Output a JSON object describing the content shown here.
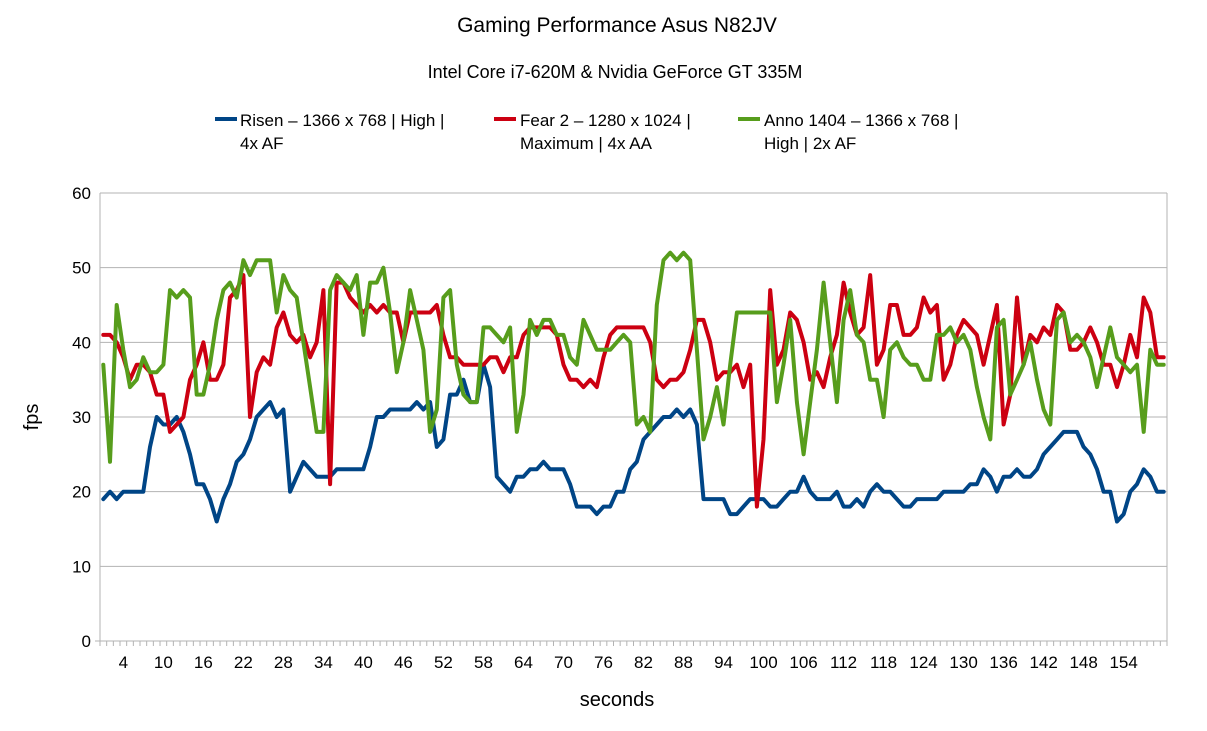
{
  "chart_data": {
    "type": "line",
    "title": "Gaming Performance Asus N82JV",
    "subtitle": "Intel Core i7-620M & Nvidia GeForce GT 335M",
    "xlabel": "seconds",
    "ylabel": "fps",
    "ylim": [
      0,
      60
    ],
    "yticks": [
      0,
      10,
      20,
      30,
      40,
      50,
      60
    ],
    "ytick_labels": [
      "0",
      "10",
      "20",
      "30",
      "40",
      "50",
      "60"
    ],
    "x_count": 160,
    "xtick_labels": [
      "4",
      "10",
      "16",
      "22",
      "28",
      "34",
      "40",
      "46",
      "52",
      "58",
      "64",
      "70",
      "76",
      "82",
      "88",
      "94",
      "100",
      "106",
      "112",
      "118",
      "124",
      "130",
      "136",
      "142",
      "148",
      "154"
    ],
    "xtick_values": [
      4,
      10,
      16,
      22,
      28,
      34,
      40,
      46,
      52,
      58,
      64,
      70,
      76,
      82,
      88,
      94,
      100,
      106,
      112,
      118,
      124,
      130,
      136,
      142,
      148,
      154
    ],
    "grid": true,
    "legend_position": "top",
    "series": [
      {
        "name": "Risen – 1366 x 768 | High | 4x AF",
        "legend_lines": [
          "Risen – 1366 x 768 | High |",
          "4x AF"
        ],
        "color": "#004586",
        "values": [
          19,
          20,
          19,
          20,
          20,
          20,
          20,
          26,
          30,
          29,
          29,
          30,
          28,
          25,
          21,
          21,
          19,
          16,
          19,
          21,
          24,
          25,
          27,
          30,
          31,
          32,
          30,
          31,
          20,
          22,
          24,
          23,
          22,
          22,
          22,
          23,
          23,
          23,
          23,
          23,
          26,
          30,
          30,
          31,
          31,
          31,
          31,
          32,
          31,
          32,
          26,
          27,
          33,
          33,
          35,
          32,
          32,
          37,
          34,
          22,
          21,
          20,
          22,
          22,
          23,
          23,
          24,
          23,
          23,
          23,
          21,
          18,
          18,
          18,
          17,
          18,
          18,
          20,
          20,
          23,
          24,
          27,
          28,
          29,
          30,
          30,
          31,
          30,
          31,
          29,
          19,
          19,
          19,
          19,
          17,
          17,
          18,
          19,
          19,
          19,
          18,
          18,
          19,
          20,
          20,
          22,
          20,
          19,
          19,
          19,
          20,
          18,
          18,
          19,
          18,
          20,
          21,
          20,
          20,
          19,
          18,
          18,
          19,
          19,
          19,
          19,
          20,
          20,
          20,
          20,
          21,
          21,
          23,
          22,
          20,
          22,
          22,
          23,
          22,
          22,
          23,
          25,
          26,
          27,
          28,
          28,
          28,
          26,
          25,
          23,
          20,
          20,
          16,
          17,
          20,
          21,
          23,
          22,
          20,
          20
        ]
      },
      {
        "name": "Fear 2 – 1280 x 1024 | Maximum | 4x AA",
        "legend_lines": [
          "Fear 2 – 1280 x 1024 |",
          "Maximum | 4x AA"
        ],
        "color": "#cc0011",
        "values": [
          41,
          41,
          40,
          38,
          35,
          37,
          37,
          36,
          33,
          33,
          28,
          29,
          30,
          35,
          37,
          40,
          35,
          35,
          37,
          46,
          47,
          49,
          30,
          36,
          38,
          37,
          42,
          44,
          41,
          40,
          41,
          38,
          40,
          47,
          21,
          48,
          48,
          46,
          45,
          44,
          45,
          44,
          45,
          44,
          44,
          40,
          44,
          44,
          44,
          44,
          45,
          41,
          38,
          38,
          37,
          37,
          37,
          37,
          38,
          38,
          36,
          38,
          38,
          41,
          42,
          42,
          42,
          42,
          41,
          37,
          35,
          35,
          34,
          35,
          34,
          38,
          41,
          42,
          42,
          42,
          42,
          42,
          40,
          35,
          34,
          35,
          35,
          36,
          39,
          43,
          43,
          40,
          35,
          36,
          36,
          37,
          34,
          37,
          18,
          27,
          47,
          37,
          39,
          44,
          43,
          40,
          35,
          36,
          34,
          38,
          41,
          48,
          44,
          41,
          42,
          49,
          37,
          39,
          45,
          45,
          41,
          41,
          42,
          46,
          44,
          45,
          35,
          37,
          41,
          43,
          42,
          41,
          37,
          41,
          45,
          29,
          33,
          46,
          37,
          41,
          40,
          42,
          41,
          45,
          44,
          39,
          39,
          40,
          42,
          40,
          37,
          37,
          34,
          37,
          41,
          38,
          46,
          44,
          38,
          38
        ]
      },
      {
        "name": "Anno 1404 – 1366 x 768 | High | 2x AF",
        "legend_lines": [
          "Anno 1404 – 1366 x 768 |",
          "High | 2x AF"
        ],
        "color": "#579d1c",
        "values": [
          37,
          24,
          45,
          39,
          34,
          35,
          38,
          36,
          36,
          37,
          47,
          46,
          47,
          46,
          33,
          33,
          37,
          43,
          47,
          48,
          46,
          51,
          49,
          51,
          51,
          51,
          44,
          49,
          47,
          46,
          40,
          34,
          28,
          28,
          47,
          49,
          48,
          47,
          49,
          41,
          48,
          48,
          50,
          44,
          36,
          40,
          47,
          43,
          39,
          28,
          31,
          46,
          47,
          37,
          33,
          32,
          32,
          42,
          42,
          41,
          40,
          42,
          28,
          33,
          43,
          41,
          43,
          43,
          41,
          41,
          38,
          37,
          43,
          41,
          39,
          39,
          39,
          40,
          41,
          40,
          29,
          30,
          28,
          45,
          51,
          52,
          51,
          52,
          51,
          39,
          27,
          30,
          34,
          29,
          37,
          44,
          44,
          44,
          44,
          44,
          44,
          32,
          37,
          43,
          32,
          25,
          32,
          39,
          48,
          40,
          32,
          43,
          47,
          41,
          40,
          35,
          35,
          30,
          39,
          40,
          38,
          37,
          37,
          35,
          35,
          41,
          41,
          42,
          40,
          41,
          39,
          34,
          30,
          27,
          42,
          43,
          33,
          35,
          37,
          40,
          35,
          31,
          29,
          43,
          44,
          40,
          41,
          40,
          38,
          34,
          38,
          42,
          38,
          37,
          36,
          37,
          28,
          39,
          37,
          37
        ]
      }
    ]
  }
}
